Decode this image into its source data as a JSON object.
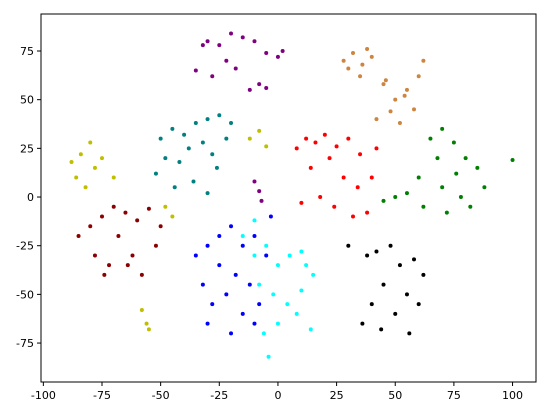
{
  "chart_data": {
    "type": "scatter",
    "xlim": [
      -101,
      110
    ],
    "ylim": [
      -95,
      94
    ],
    "xticks": [
      -100,
      -75,
      -50,
      -25,
      0,
      25,
      50,
      75,
      100
    ],
    "yticks": [
      -75,
      -50,
      -25,
      0,
      25,
      50,
      75
    ],
    "grid": false,
    "series": [
      {
        "color": "#800080",
        "x": [
          -30,
          -25,
          -20,
          -15,
          -10,
          -5,
          0,
          2,
          -35,
          -28,
          -18,
          -8,
          -12,
          -22,
          -32,
          -5,
          -8,
          -10,
          -7
        ],
        "values": [
          80,
          78,
          84,
          82,
          80,
          74,
          72,
          75,
          65,
          62,
          66,
          58,
          55,
          70,
          78,
          56,
          3,
          8,
          -2
        ]
      },
      {
        "color": "#cd853f",
        "x": [
          28,
          32,
          36,
          40,
          35,
          45,
          50,
          55,
          60,
          62,
          48,
          42,
          52,
          58,
          38,
          30,
          54,
          46
        ],
        "values": [
          70,
          74,
          68,
          72,
          62,
          58,
          50,
          55,
          62,
          70,
          44,
          40,
          38,
          45,
          76,
          66,
          52,
          60
        ]
      },
      {
        "color": "#008080",
        "x": [
          -50,
          -45,
          -40,
          -35,
          -30,
          -25,
          -20,
          -48,
          -42,
          -38,
          -32,
          -28,
          -22,
          -52,
          -36,
          -26,
          -44,
          -30
        ],
        "values": [
          30,
          35,
          32,
          38,
          40,
          42,
          38,
          20,
          18,
          25,
          28,
          22,
          30,
          12,
          8,
          15,
          5,
          2
        ]
      },
      {
        "color": "#bfbf00",
        "x": [
          -88,
          -84,
          -80,
          -78,
          -75,
          -86,
          -70,
          -12,
          -8,
          -5,
          -58,
          -56,
          -55,
          -48,
          -45,
          -82
        ],
        "values": [
          18,
          22,
          28,
          15,
          20,
          10,
          10,
          30,
          34,
          26,
          -58,
          -65,
          -68,
          -5,
          -10,
          5
        ]
      },
      {
        "color": "#ff0000",
        "x": [
          8,
          12,
          16,
          20,
          25,
          30,
          35,
          40,
          42,
          18,
          24,
          32,
          38,
          28,
          14,
          22,
          34,
          10
        ],
        "values": [
          25,
          30,
          28,
          32,
          26,
          30,
          22,
          10,
          25,
          0,
          -5,
          -10,
          -8,
          10,
          15,
          20,
          5,
          -3
        ]
      },
      {
        "color": "#008000",
        "x": [
          65,
          70,
          75,
          80,
          85,
          60,
          70,
          78,
          88,
          50,
          55,
          62,
          72,
          82,
          100,
          68,
          76,
          45
        ],
        "values": [
          30,
          35,
          28,
          20,
          15,
          10,
          5,
          0,
          5,
          0,
          2,
          -5,
          -8,
          -5,
          19,
          20,
          12,
          -2
        ]
      },
      {
        "color": "#8b0000",
        "x": [
          -80,
          -75,
          -70,
          -65,
          -60,
          -55,
          -50,
          -85,
          -78,
          -72,
          -62,
          -52,
          -68,
          -58,
          -74,
          -64
        ],
        "values": [
          -15,
          -10,
          -5,
          -8,
          -12,
          -6,
          -15,
          -20,
          -30,
          -35,
          -30,
          -25,
          -20,
          -40,
          -40,
          -35
        ]
      },
      {
        "color": "#0000ff",
        "x": [
          -35,
          -30,
          -25,
          -20,
          -15,
          -10,
          -5,
          -32,
          -28,
          -22,
          -18,
          -12,
          -8,
          -30,
          -20,
          -10,
          -25,
          -15,
          -3
        ],
        "values": [
          -30,
          -25,
          -20,
          -15,
          -25,
          -20,
          -30,
          -45,
          -55,
          -50,
          -40,
          -45,
          -55,
          -65,
          -70,
          -65,
          -35,
          -60,
          -10
        ]
      },
      {
        "color": "#00ffff",
        "x": [
          -15,
          -10,
          -5,
          0,
          5,
          10,
          15,
          -8,
          -2,
          4,
          10,
          14,
          -6,
          0,
          -4,
          8,
          12,
          -10
        ],
        "values": [
          -20,
          -30,
          -25,
          -35,
          -30,
          -28,
          -40,
          -45,
          -50,
          -55,
          -48,
          -68,
          -70,
          -65,
          -82,
          -60,
          -35,
          -12
        ]
      },
      {
        "color": "#000000",
        "x": [
          38,
          42,
          48,
          52,
          58,
          62,
          45,
          55,
          40,
          36,
          50,
          60,
          44,
          56,
          30
        ],
        "values": [
          -30,
          -28,
          -25,
          -35,
          -32,
          -40,
          -45,
          -50,
          -55,
          -65,
          -60,
          -55,
          -68,
          -70,
          -25
        ]
      }
    ]
  }
}
